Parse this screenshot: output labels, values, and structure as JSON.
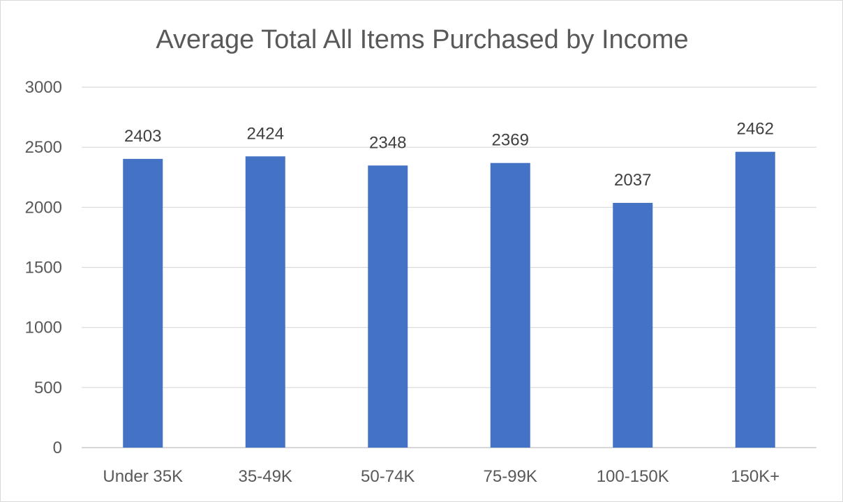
{
  "chart_data": {
    "type": "bar",
    "title": "Average Total All Items Purchased by Income",
    "xlabel": "",
    "ylabel": "",
    "categories": [
      "Under 35K",
      "35-49K",
      "50-74K",
      "75-99K",
      "100-150K",
      "150K+"
    ],
    "values": [
      2403,
      2424,
      2348,
      2369,
      2037,
      2462
    ],
    "data_labels": [
      "2403",
      "2424",
      "2348",
      "2369",
      "2037",
      "2462"
    ],
    "ylim": [
      0,
      3000
    ],
    "yticks": [
      0,
      500,
      1000,
      1500,
      2000,
      2500,
      3000
    ],
    "ytick_labels": [
      "0",
      "500",
      "1000",
      "1500",
      "2000",
      "2500",
      "3000"
    ],
    "grid": true,
    "legend": "none",
    "colors": {
      "bar": "#4472c4",
      "grid": "#d9d9d9",
      "text": "#595959"
    }
  }
}
